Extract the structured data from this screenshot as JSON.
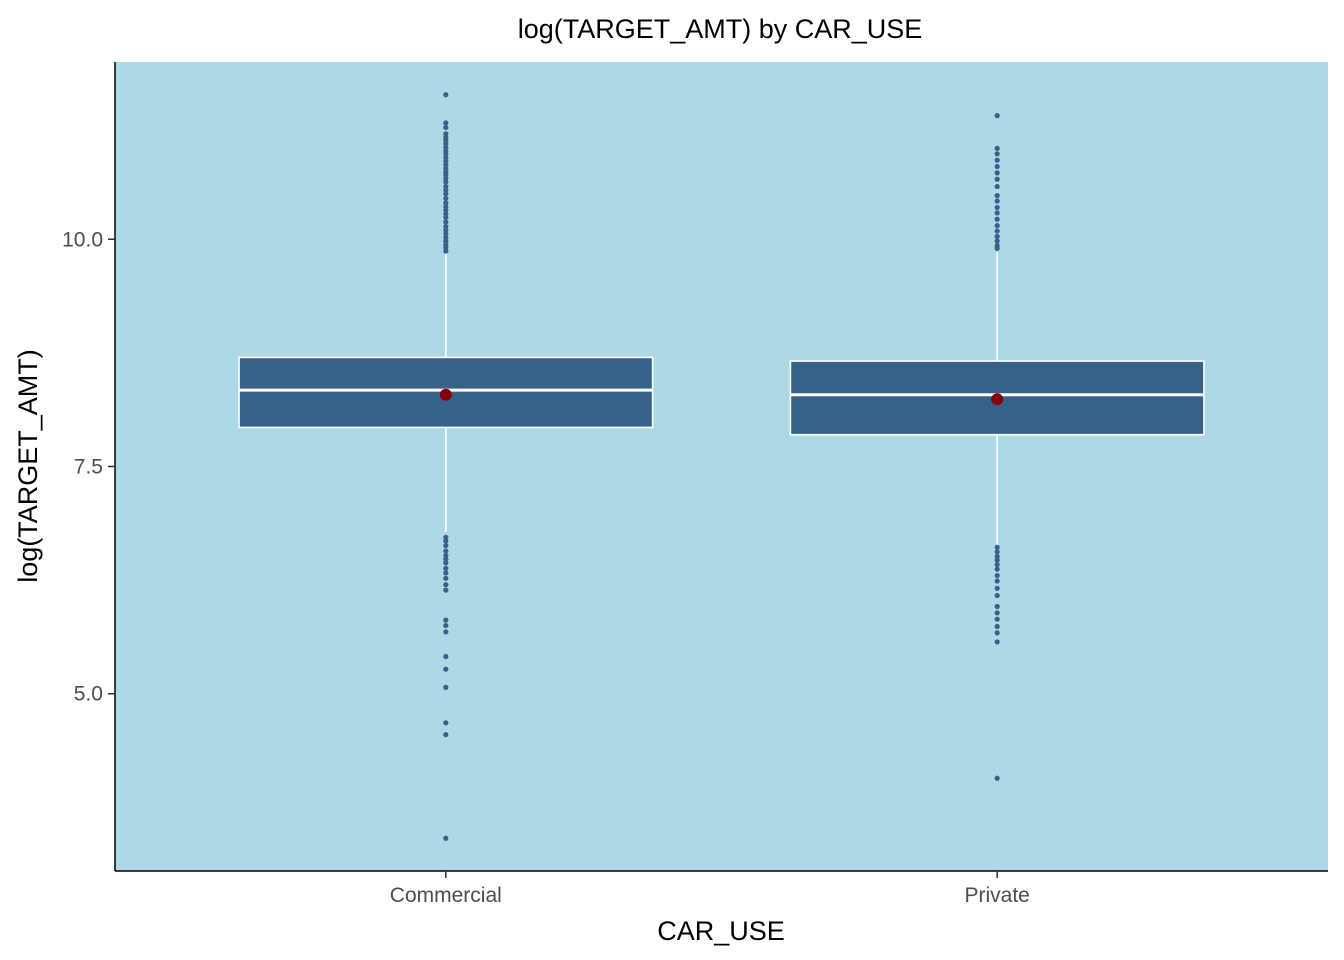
{
  "chart_data": {
    "type": "boxplot",
    "title": "log(TARGET_AMT) by CAR_USE",
    "xlabel": "CAR_USE",
    "ylabel": "log(TARGET_AMT)",
    "ylim": [
      3.05,
      11.95
    ],
    "yticks": [
      5.0,
      7.5,
      10.0
    ],
    "ytick_labels": [
      "5.0",
      "7.5",
      "10.0"
    ],
    "categories": [
      "Commercial",
      "Private"
    ],
    "grid": false,
    "colors": {
      "panel": "#add8e6",
      "box_fill": "#366289",
      "box_line": "#ffffff",
      "whisker": "#ffffff",
      "outlier": "#366289",
      "mean": "#8b0000"
    },
    "boxes": [
      {
        "category": "Commercial",
        "q1": 7.93,
        "median": 8.34,
        "q3": 8.7,
        "whisker_low": 6.78,
        "whisker_high": 9.84,
        "mean": 8.29,
        "outliers": [
          11.59,
          11.28,
          11.23,
          11.16,
          11.12,
          11.09,
          11.05,
          11.01,
          10.97,
          10.94,
          10.9,
          10.86,
          10.82,
          10.78,
          10.74,
          10.71,
          10.67,
          10.63,
          10.58,
          10.54,
          10.5,
          10.45,
          10.4,
          10.36,
          10.32,
          10.28,
          10.24,
          10.19,
          10.14,
          10.1,
          10.06,
          10.02,
          9.98,
          9.94,
          9.91,
          9.87,
          6.72,
          6.68,
          6.63,
          6.57,
          6.52,
          6.48,
          6.44,
          6.38,
          6.33,
          6.27,
          6.2,
          6.14,
          5.81,
          5.75,
          5.68,
          5.41,
          5.27,
          5.07,
          4.68,
          4.55,
          3.41
        ]
      },
      {
        "category": "Private",
        "q1": 7.85,
        "median": 8.29,
        "q3": 8.66,
        "whisker_low": 6.64,
        "whisker_high": 9.86,
        "mean": 8.24,
        "outliers": [
          11.36,
          11.0,
          10.94,
          10.87,
          10.8,
          10.73,
          10.66,
          10.58,
          10.48,
          10.42,
          10.35,
          10.29,
          10.22,
          10.15,
          10.09,
          10.03,
          9.98,
          9.93,
          9.9,
          6.61,
          6.56,
          6.51,
          6.47,
          6.42,
          6.37,
          6.3,
          6.24,
          6.16,
          6.08,
          5.96,
          5.89,
          5.82,
          5.74,
          5.67,
          5.57,
          4.07
        ]
      }
    ]
  }
}
